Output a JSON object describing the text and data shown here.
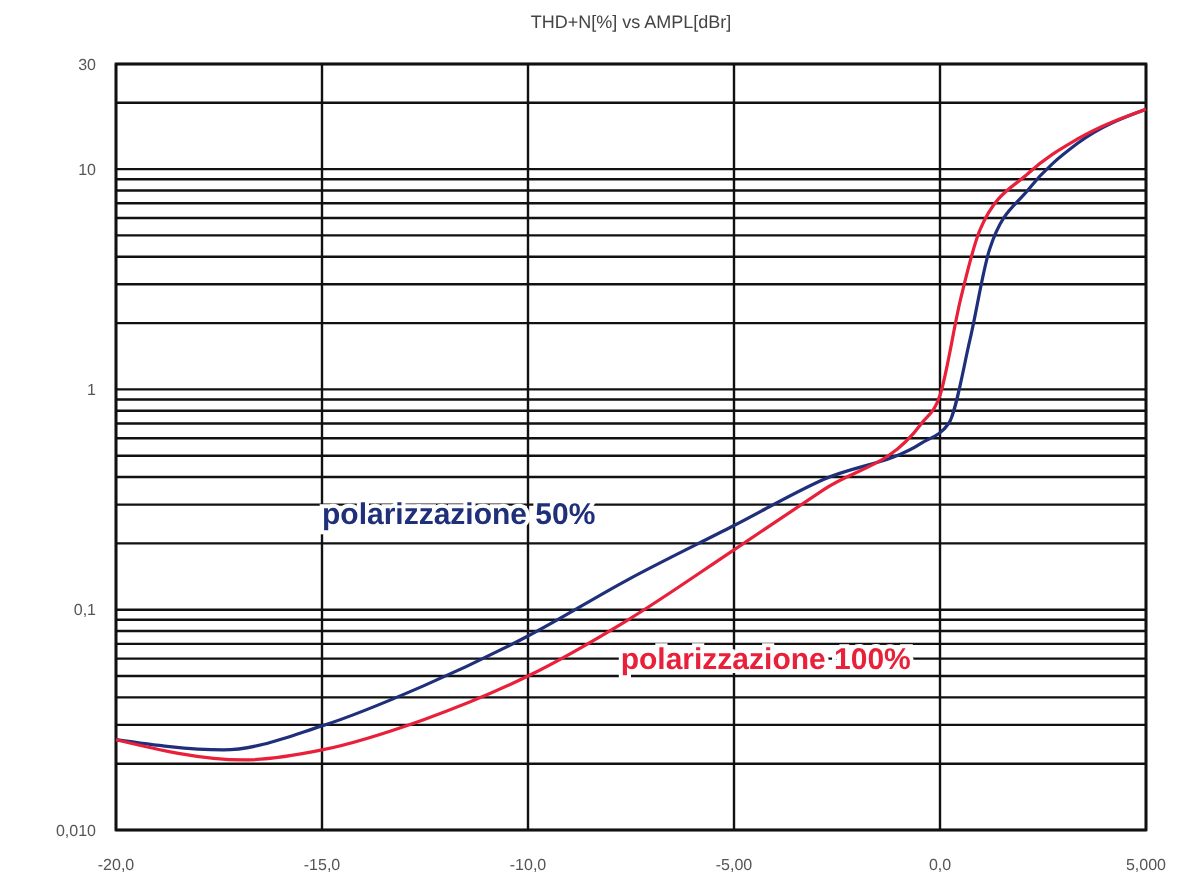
{
  "chart_data": {
    "type": "line",
    "title": "THD+N[%]    vs    AMPL[dBr]",
    "log": "y",
    "grid": true,
    "marker": "none",
    "line_style": "solid",
    "xlim": [
      -20,
      5
    ],
    "xticks": [
      {
        "value": -20,
        "label": "-20,0"
      },
      {
        "value": -15,
        "label": "-15,0"
      },
      {
        "value": -10,
        "label": "-10,0"
      },
      {
        "value": -5,
        "label": "-5,00"
      },
      {
        "value": 0,
        "label": "0,0"
      },
      {
        "value": 5,
        "label": "5,000"
      }
    ],
    "ylim": [
      0.01,
      30
    ],
    "yticks": [
      {
        "value": 0.01,
        "label": "0,010"
      },
      {
        "value": 0.02,
        "label": null
      },
      {
        "value": 0.03,
        "label": null
      },
      {
        "value": 0.04,
        "label": null
      },
      {
        "value": 0.05,
        "label": null
      },
      {
        "value": 0.06,
        "label": null
      },
      {
        "value": 0.07,
        "label": null
      },
      {
        "value": 0.08,
        "label": null
      },
      {
        "value": 0.09,
        "label": null
      },
      {
        "value": 0.1,
        "label": "0,1"
      },
      {
        "value": 0.2,
        "label": null
      },
      {
        "value": 0.3,
        "label": null
      },
      {
        "value": 0.4,
        "label": null
      },
      {
        "value": 0.5,
        "label": null
      },
      {
        "value": 0.6,
        "label": null
      },
      {
        "value": 0.7,
        "label": null
      },
      {
        "value": 0.8,
        "label": null
      },
      {
        "value": 0.9,
        "label": null
      },
      1,
      {
        "value": 2,
        "label": null
      },
      {
        "value": 3,
        "label": null
      },
      {
        "value": 4,
        "label": null
      },
      {
        "value": 5,
        "label": null
      },
      {
        "value": 6,
        "label": null
      },
      {
        "value": 7,
        "label": null
      },
      {
        "value": 8,
        "label": null
      },
      {
        "value": 9,
        "label": null
      },
      10,
      {
        "value": 20,
        "label": null
      },
      30
    ],
    "series": [
      {
        "name": "polarizzazione 50%",
        "color": "#1f2f7a",
        "x": [
          -20,
          -17.4,
          -15,
          -12.55,
          -10,
          -7.57,
          -5,
          -2.83,
          -0.45,
          0.21,
          0.73,
          1.2,
          2.15,
          3.34,
          5
        ],
        "values": [
          0.0257,
          0.0231,
          0.0297,
          0.045,
          0.076,
          0.137,
          0.241,
          0.39,
          0.57,
          0.7,
          1.69,
          4.3,
          8.1,
          13.1,
          18.7
        ]
      },
      {
        "name": "polarizzazione 100%",
        "color": "#e8203a",
        "x": [
          -20,
          -16.9,
          -15,
          -12.55,
          -10,
          -7.57,
          -5,
          -2.83,
          -0.45,
          0,
          0.5,
          0.97,
          2.15,
          3.34,
          5
        ],
        "values": [
          0.0257,
          0.0208,
          0.0231,
          0.0316,
          0.05,
          0.09,
          0.187,
          0.35,
          0.7,
          0.94,
          2.57,
          5.3,
          9.6,
          13.7,
          18.7
        ]
      }
    ]
  }
}
